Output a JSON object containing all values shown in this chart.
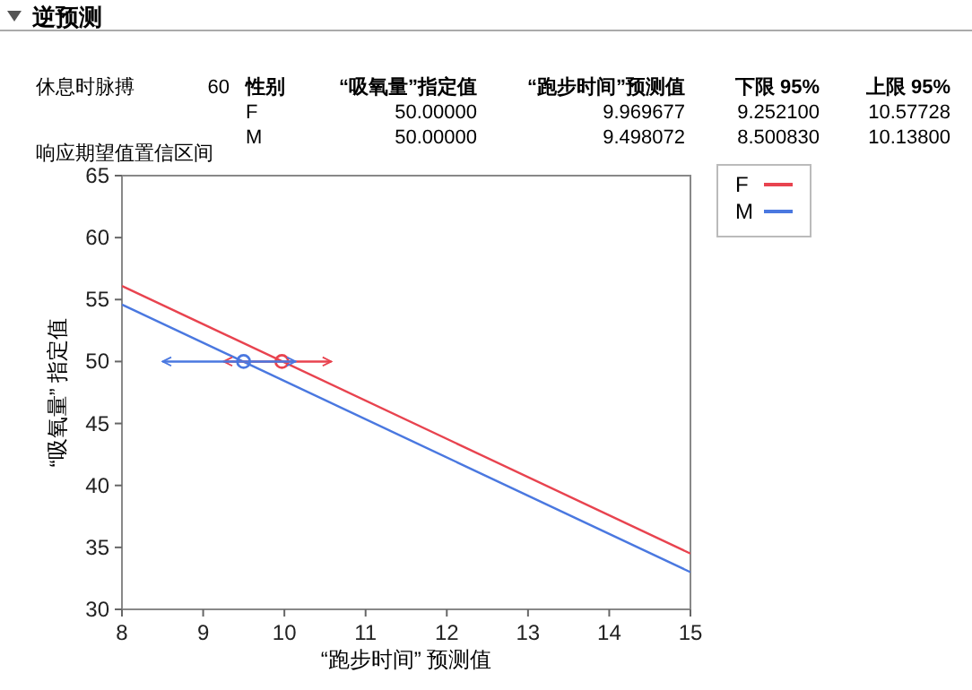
{
  "chart_data": {
    "type": "line",
    "title": "逆预测",
    "subtitle": "响应期望值置信区间",
    "xlabel": "“跑步时间” 预测值",
    "ylabel": "“吸氧量” 指定值",
    "xlim": [
      8,
      15
    ],
    "xticks": [
      8,
      9,
      10,
      11,
      12,
      13,
      14,
      15
    ],
    "ylim": [
      30,
      65
    ],
    "yticks": [
      30,
      35,
      40,
      45,
      50,
      55,
      60,
      65
    ],
    "legend": "right",
    "series": [
      {
        "name": "F",
        "color": "#e8434f",
        "x": [
          8,
          15
        ],
        "values": [
          56.1,
          34.5
        ]
      },
      {
        "name": "M",
        "color": "#4a78e0",
        "x": [
          8,
          15
        ],
        "values": [
          54.6,
          33.0
        ]
      },
      {
        "type": "scatter",
        "marker": "circle",
        "color": "#e8434f",
        "x": [
          9.969677
        ],
        "values": [
          50
        ],
        "xerrors": [
          [
            9.2521,
            10.57728
          ]
        ]
      },
      {
        "type": "scatter",
        "marker": "circle",
        "color": "#4a78e0",
        "x": [
          9.498072
        ],
        "values": [
          50
        ],
        "xerrors": [
          [
            8.50083,
            10.138
          ]
        ]
      }
    ],
    "annotations": [
      "休息时脉搏",
      "60",
      "性别",
      "“吸氧量”指定值",
      "“跑步时间”预测值",
      "下限 95%",
      "上限 95%",
      "F",
      "50.00000",
      "9.969677",
      "9.252100",
      "10.57728",
      "M",
      "50.00000",
      "9.498072",
      "8.500830",
      "10.13800"
    ]
  }
}
